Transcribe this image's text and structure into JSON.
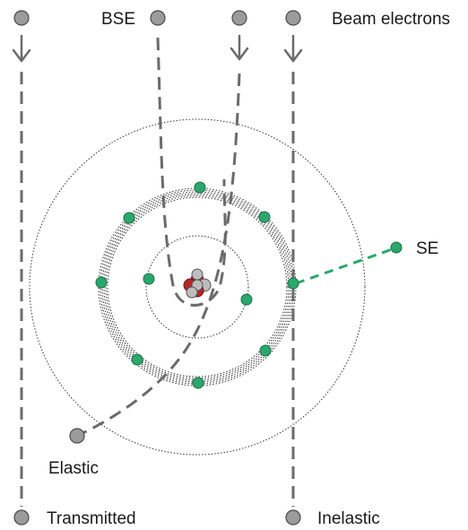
{
  "labels": {
    "bse": "BSE",
    "beam_electrons": "Beam electrons",
    "se": "SE",
    "elastic": "Elastic",
    "transmitted": "Transmitted",
    "inelastic": "Inelastic"
  },
  "colors": {
    "incident_electron": "#9b9b9b",
    "orbital_electron": "#2aa86c",
    "trajectory": "#6b6b6b",
    "secondary_electron_path": "#2aa86c",
    "nucleus_proton": "#b3262b",
    "nucleus_neutron": "#bdbdbd"
  }
}
